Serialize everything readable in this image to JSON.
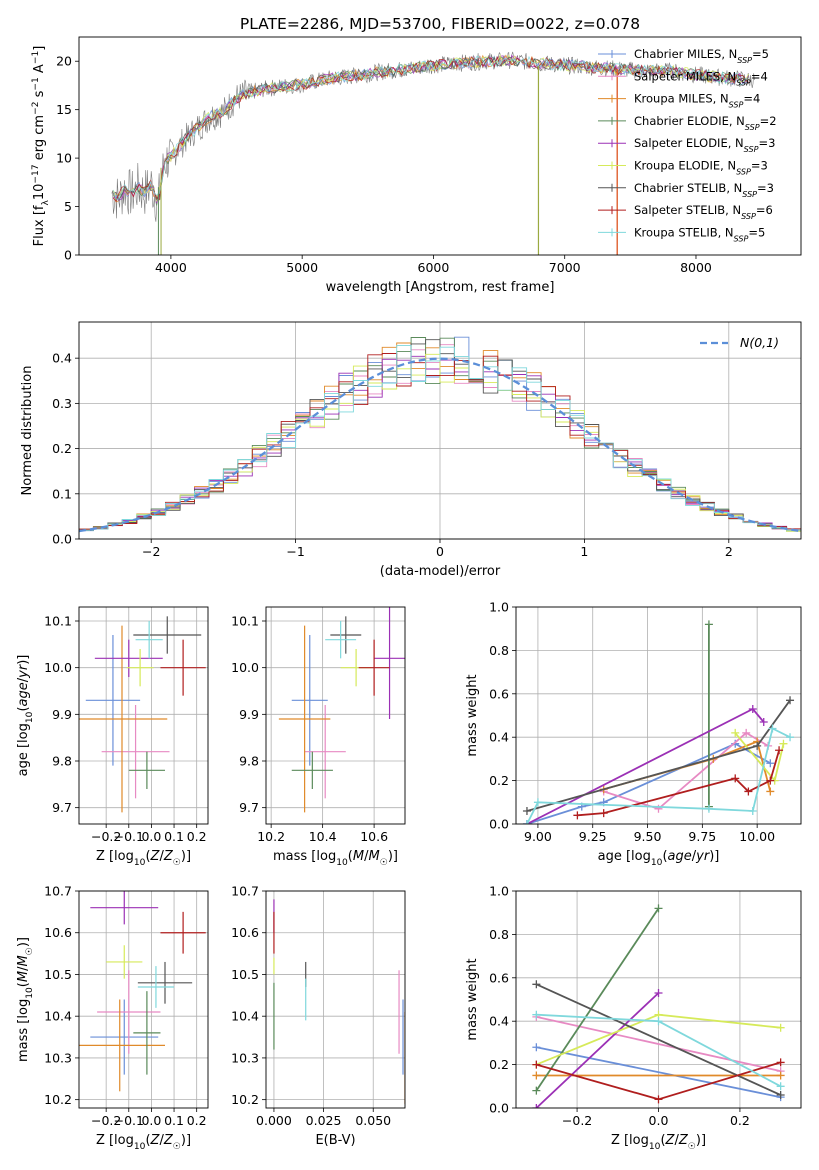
{
  "figure_title": "PLATE=2286, MJD=53700, FIBERID=0022, z=0.078",
  "colors": {
    "Chabrier MILES": "#6a8fd8",
    "Salpeter MILES": "#e78ac3",
    "Kroupa MILES": "#e08a2a",
    "Chabrier ELODIE": "#5a8a5a",
    "Salpeter ELODIE": "#9b30b5",
    "Kroupa ELODIE": "#d6ea5a",
    "Chabrier STELIB": "#555555",
    "Salpeter STELIB": "#b01e1e",
    "Kroupa STELIB": "#7fd8dc"
  },
  "chart_data": [
    {
      "type": "line",
      "title": "PLATE=2286, MJD=53700, FIBERID=0022, z=0.078",
      "xlabel": "wavelength [Angstrom, rest frame]",
      "ylabel": "Flux [fλ10⁻¹⁷ erg cm⁻² s⁻¹ A⁻¹]",
      "xlim": [
        3300,
        8800
      ],
      "ylim": [
        0,
        22.5
      ],
      "xticks": [
        4000,
        5000,
        6000,
        7000,
        8000
      ],
      "yticks": [
        0,
        5,
        10,
        15,
        20
      ],
      "x": [
        3550,
        3600,
        3650,
        3700,
        3750,
        3800,
        3850,
        3900,
        3950,
        4000,
        4100,
        4200,
        4300,
        4400,
        4500,
        4600,
        4700,
        4800,
        4900,
        5000,
        5200,
        5400,
        5600,
        5800,
        6000,
        6200,
        6400,
        6600,
        6800,
        7000,
        7200,
        7400,
        7600,
        7800,
        8000,
        8200,
        8400
      ],
      "observed_flux": [
        6.4,
        5.8,
        6.9,
        6.2,
        7.0,
        6.4,
        7.3,
        5.2,
        9.6,
        10.2,
        11.8,
        13.1,
        14.3,
        14.8,
        16.2,
        16.8,
        17.1,
        17.3,
        17.5,
        17.6,
        18.2,
        18.5,
        18.9,
        19.2,
        19.6,
        19.8,
        20.0,
        20.1,
        19.8,
        19.6,
        19.4,
        19.2,
        19.0,
        19.0,
        18.6,
        18.3,
        18.1
      ],
      "series": [
        {
          "name": "Chabrier MILES, N_SSP=5",
          "n_ssp": "5"
        },
        {
          "name": "Salpeter MILES, N_SSP=4",
          "n_ssp": "4"
        },
        {
          "name": "Kroupa MILES, N_SSP=4",
          "n_ssp": "4"
        },
        {
          "name": "Chabrier ELODIE, N_SSP=2",
          "n_ssp": "2"
        },
        {
          "name": "Salpeter ELODIE, N_SSP=3",
          "n_ssp": "3"
        },
        {
          "name": "Kroupa ELODIE, N_SSP=3",
          "n_ssp": "3"
        },
        {
          "name": "Chabrier STELIB, N_SSP=3",
          "n_ssp": "3"
        },
        {
          "name": "Salpeter STELIB, N_SSP=6",
          "n_ssp": "6"
        },
        {
          "name": "Kroupa STELIB, N_SSP=5",
          "n_ssp": "5"
        }
      ],
      "legend": "top-right"
    },
    {
      "type": "histogram",
      "xlabel": "(data-model)/error",
      "ylabel": "Normed distribution",
      "xlim": [
        -2.5,
        2.5
      ],
      "ylim": [
        0,
        0.48
      ],
      "xticks": [
        -2,
        -1,
        0,
        1,
        2
      ],
      "yticks": [
        0.0,
        0.1,
        0.2,
        0.3,
        0.4
      ],
      "grid": true,
      "bin_width": 0.1,
      "reference": {
        "name": "N(0,1)",
        "style": "dashed"
      },
      "legend": "top-right"
    },
    {
      "type": "scatter",
      "xlabel": "Z [log10(Z/Z☉)]",
      "ylabel": "age [log10(age/yr)]",
      "xlim": [
        -0.32,
        0.25
      ],
      "ylim": [
        9.665,
        10.13
      ],
      "xticks": [
        -0.2,
        -0.1,
        0.0,
        0.1,
        0.2
      ],
      "yticks": [
        9.7,
        9.8,
        9.9,
        10.0,
        10.1
      ],
      "grid": true,
      "points": [
        {
          "series": "Chabrier MILES",
          "x": -0.17,
          "y": 9.93,
          "xerr": 0.12,
          "yerr": 0.14
        },
        {
          "series": "Salpeter MILES",
          "x": -0.07,
          "y": 9.82,
          "xerr": 0.15,
          "yerr": 0.1
        },
        {
          "series": "Kroupa MILES",
          "x": -0.13,
          "y": 9.89,
          "xerr": 0.2,
          "yerr": 0.2
        },
        {
          "series": "Chabrier ELODIE",
          "x": -0.02,
          "y": 9.78,
          "xerr": 0.08,
          "yerr": 0.04
        },
        {
          "series": "Salpeter ELODIE",
          "x": -0.1,
          "y": 10.02,
          "xerr": 0.15,
          "yerr": 0.04
        },
        {
          "series": "Kroupa ELODIE",
          "x": -0.05,
          "y": 10.0,
          "xerr": 0.06,
          "yerr": 0.04
        },
        {
          "series": "Chabrier STELIB",
          "x": 0.07,
          "y": 10.07,
          "xerr": 0.15,
          "yerr": 0.04
        },
        {
          "series": "Salpeter STELIB",
          "x": 0.14,
          "y": 10.0,
          "xerr": 0.1,
          "yerr": 0.06
        },
        {
          "series": "Kroupa STELIB",
          "x": -0.01,
          "y": 10.06,
          "xerr": 0.06,
          "yerr": 0.04
        }
      ]
    },
    {
      "type": "scatter",
      "xlabel": "mass [log10(M/M☉)]",
      "xlim": [
        10.18,
        10.72
      ],
      "ylim": [
        9.665,
        10.13
      ],
      "xticks": [
        10.2,
        10.4,
        10.6
      ],
      "yticks": [
        9.7,
        9.8,
        9.9,
        10.0,
        10.1
      ],
      "grid": true,
      "points": [
        {
          "series": "Chabrier MILES",
          "x": 10.35,
          "y": 9.93,
          "xerr": 0.07,
          "yerr": 0.14
        },
        {
          "series": "Salpeter MILES",
          "x": 10.41,
          "y": 9.82,
          "xerr": 0.08,
          "yerr": 0.1
        },
        {
          "series": "Kroupa MILES",
          "x": 10.33,
          "y": 9.89,
          "xerr": 0.1,
          "yerr": 0.2
        },
        {
          "series": "Chabrier ELODIE",
          "x": 10.36,
          "y": 9.78,
          "xerr": 0.08,
          "yerr": 0.04
        },
        {
          "series": "Salpeter ELODIE",
          "x": 10.66,
          "y": 10.02,
          "xerr": 0.06,
          "yerr": 0.13
        },
        {
          "series": "Kroupa ELODIE",
          "x": 10.53,
          "y": 10.0,
          "xerr": 0.06,
          "yerr": 0.04
        },
        {
          "series": "Chabrier STELIB",
          "x": 10.49,
          "y": 10.07,
          "xerr": 0.06,
          "yerr": 0.04
        },
        {
          "series": "Salpeter STELIB",
          "x": 10.6,
          "y": 10.0,
          "xerr": 0.06,
          "yerr": 0.06
        },
        {
          "series": "Kroupa STELIB",
          "x": 10.47,
          "y": 10.06,
          "xerr": 0.06,
          "yerr": 0.04
        }
      ]
    },
    {
      "type": "line",
      "xlabel": "age [log10(age/yr)]",
      "ylabel": "mass weight",
      "xlim": [
        8.9,
        10.2
      ],
      "ylim": [
        0,
        1
      ],
      "xticks": [
        9.0,
        9.25,
        9.5,
        9.75,
        10.0
      ],
      "yticks": [
        0.0,
        0.2,
        0.4,
        0.6,
        0.8,
        1.0
      ],
      "grid": true,
      "series": [
        {
          "name": "Chabrier MILES",
          "x": [
            8.95,
            9.2,
            9.3,
            9.9,
            10.06
          ],
          "y": [
            0.0,
            0.08,
            0.1,
            0.37,
            0.28
          ]
        },
        {
          "name": "Salpeter MILES",
          "x": [
            9.3,
            9.55,
            9.95,
            10.05
          ],
          "y": [
            0.15,
            0.07,
            0.42,
            0.36
          ]
        },
        {
          "name": "Kroupa MILES",
          "x": [
            9.3,
            9.8,
            10.0,
            10.06
          ],
          "y": [
            0.16,
            0.3,
            0.38,
            0.15
          ]
        },
        {
          "name": "Chabrier ELODIE",
          "x": [
            9.78,
            9.78
          ],
          "y": [
            0.08,
            0.92
          ]
        },
        {
          "name": "Salpeter ELODIE",
          "x": [
            8.95,
            9.98,
            10.03
          ],
          "y": [
            0.0,
            0.53,
            0.47
          ]
        },
        {
          "name": "Kroupa ELODIE",
          "x": [
            9.9,
            10.08,
            10.12
          ],
          "y": [
            0.42,
            0.2,
            0.37
          ]
        },
        {
          "name": "Chabrier STELIB",
          "x": [
            8.95,
            10.0,
            10.15
          ],
          "y": [
            0.06,
            0.36,
            0.57
          ]
        },
        {
          "name": "Salpeter STELIB",
          "x": [
            9.18,
            9.3,
            9.9,
            9.96,
            10.06,
            10.1
          ],
          "y": [
            0.04,
            0.05,
            0.21,
            0.15,
            0.2,
            0.34
          ]
        },
        {
          "name": "Kroupa STELIB",
          "x": [
            8.95,
            9.0,
            9.78,
            9.98,
            10.07,
            10.15
          ],
          "y": [
            0.0,
            0.1,
            0.07,
            0.06,
            0.44,
            0.4
          ]
        }
      ]
    },
    {
      "type": "scatter",
      "xlabel": "Z [log10(Z/Z☉)]",
      "ylabel": "mass [log10(M/M☉)]",
      "xlim": [
        -0.32,
        0.25
      ],
      "ylim": [
        10.18,
        10.7
      ],
      "xticks": [
        -0.2,
        -0.1,
        0.0,
        0.1,
        0.2
      ],
      "yticks": [
        10.2,
        10.3,
        10.4,
        10.5,
        10.6,
        10.7
      ],
      "grid": true,
      "points": [
        {
          "series": "Chabrier MILES",
          "x": -0.12,
          "y": 10.35,
          "xerr": 0.15,
          "yerr": 0.09
        },
        {
          "series": "Salpeter MILES",
          "x": -0.1,
          "y": 10.41,
          "xerr": 0.14,
          "yerr": 0.1
        },
        {
          "series": "Kroupa MILES",
          "x": -0.14,
          "y": 10.33,
          "xerr": 0.2,
          "yerr": 0.11
        },
        {
          "series": "Chabrier ELODIE",
          "x": -0.02,
          "y": 10.36,
          "xerr": 0.06,
          "yerr": 0.1
        },
        {
          "series": "Salpeter ELODIE",
          "x": -0.12,
          "y": 10.66,
          "xerr": 0.15,
          "yerr": 0.04
        },
        {
          "series": "Kroupa ELODIE",
          "x": -0.12,
          "y": 10.53,
          "xerr": 0.08,
          "yerr": 0.04
        },
        {
          "series": "Chabrier STELIB",
          "x": 0.06,
          "y": 10.48,
          "xerr": 0.12,
          "yerr": 0.05
        },
        {
          "series": "Salpeter STELIB",
          "x": 0.14,
          "y": 10.6,
          "xerr": 0.1,
          "yerr": 0.05
        },
        {
          "series": "Kroupa STELIB",
          "x": 0.02,
          "y": 10.47,
          "xerr": 0.08,
          "yerr": 0.05
        }
      ]
    },
    {
      "type": "scatter",
      "xlabel": "E(B-V)",
      "xlim": [
        -0.004,
        0.066
      ],
      "ylim": [
        10.18,
        10.7
      ],
      "xticks": [
        0.0,
        0.025,
        0.05
      ],
      "yticks": [
        10.2,
        10.3,
        10.4,
        10.5,
        10.6,
        10.7
      ],
      "grid": true,
      "points": [
        {
          "series": "Chabrier MILES",
          "x": 0.065,
          "y": 10.35,
          "xerr": 0,
          "yerr": 0.09
        },
        {
          "series": "Salpeter MILES",
          "x": 0.063,
          "y": 10.41,
          "xerr": 0,
          "yerr": 0.1
        },
        {
          "series": "Kroupa MILES",
          "x": 0.066,
          "y": 10.3,
          "xerr": 0,
          "yerr": 0.11
        },
        {
          "series": "Chabrier ELODIE",
          "x": 0.0,
          "y": 10.4,
          "xerr": 0,
          "yerr": 0.08
        },
        {
          "series": "Salpeter ELODIE",
          "x": 0.0,
          "y": 10.64,
          "xerr": 0,
          "yerr": 0.04
        },
        {
          "series": "Kroupa ELODIE",
          "x": 0.0,
          "y": 10.52,
          "xerr": 0,
          "yerr": 0.02
        },
        {
          "series": "Chabrier STELIB",
          "x": 0.016,
          "y": 10.5,
          "xerr": 0,
          "yerr": 0.03
        },
        {
          "series": "Salpeter STELIB",
          "x": 0.0,
          "y": 10.6,
          "xerr": 0,
          "yerr": 0.05
        },
        {
          "series": "Kroupa STELIB",
          "x": 0.016,
          "y": 10.44,
          "xerr": 0,
          "yerr": 0.05
        }
      ]
    },
    {
      "type": "line",
      "xlabel": "Z [log10(Z/Z☉)]",
      "ylabel": "mass weight",
      "xlim": [
        -0.35,
        0.35
      ],
      "ylim": [
        0,
        1
      ],
      "xticks": [
        -0.2,
        0.0,
        0.2
      ],
      "yticks": [
        0.0,
        0.2,
        0.4,
        0.6,
        0.8,
        1.0
      ],
      "grid": true,
      "series": [
        {
          "name": "Chabrier MILES",
          "x": [
            -0.3,
            0.3
          ],
          "y": [
            0.28,
            0.05
          ]
        },
        {
          "name": "Salpeter MILES",
          "x": [
            -0.3,
            0.3
          ],
          "y": [
            0.42,
            0.17
          ]
        },
        {
          "name": "Kroupa MILES",
          "x": [
            -0.3,
            0.3
          ],
          "y": [
            0.15,
            0.15
          ]
        },
        {
          "name": "Chabrier ELODIE",
          "x": [
            -0.3,
            0.0
          ],
          "y": [
            0.08,
            0.92
          ]
        },
        {
          "name": "Salpeter ELODIE",
          "x": [
            -0.3,
            0.0
          ],
          "y": [
            0.0,
            0.53
          ]
        },
        {
          "name": "Kroupa ELODIE",
          "x": [
            -0.3,
            0.0,
            0.3
          ],
          "y": [
            0.2,
            0.43,
            0.37
          ]
        },
        {
          "name": "Chabrier STELIB",
          "x": [
            -0.3,
            0.3
          ],
          "y": [
            0.57,
            0.06
          ]
        },
        {
          "name": "Salpeter STELIB",
          "x": [
            -0.3,
            0.0,
            0.3
          ],
          "y": [
            0.2,
            0.04,
            0.21
          ]
        },
        {
          "name": "Kroupa STELIB",
          "x": [
            -0.3,
            0.0,
            0.3
          ],
          "y": [
            0.43,
            0.4,
            0.1
          ]
        }
      ]
    }
  ]
}
